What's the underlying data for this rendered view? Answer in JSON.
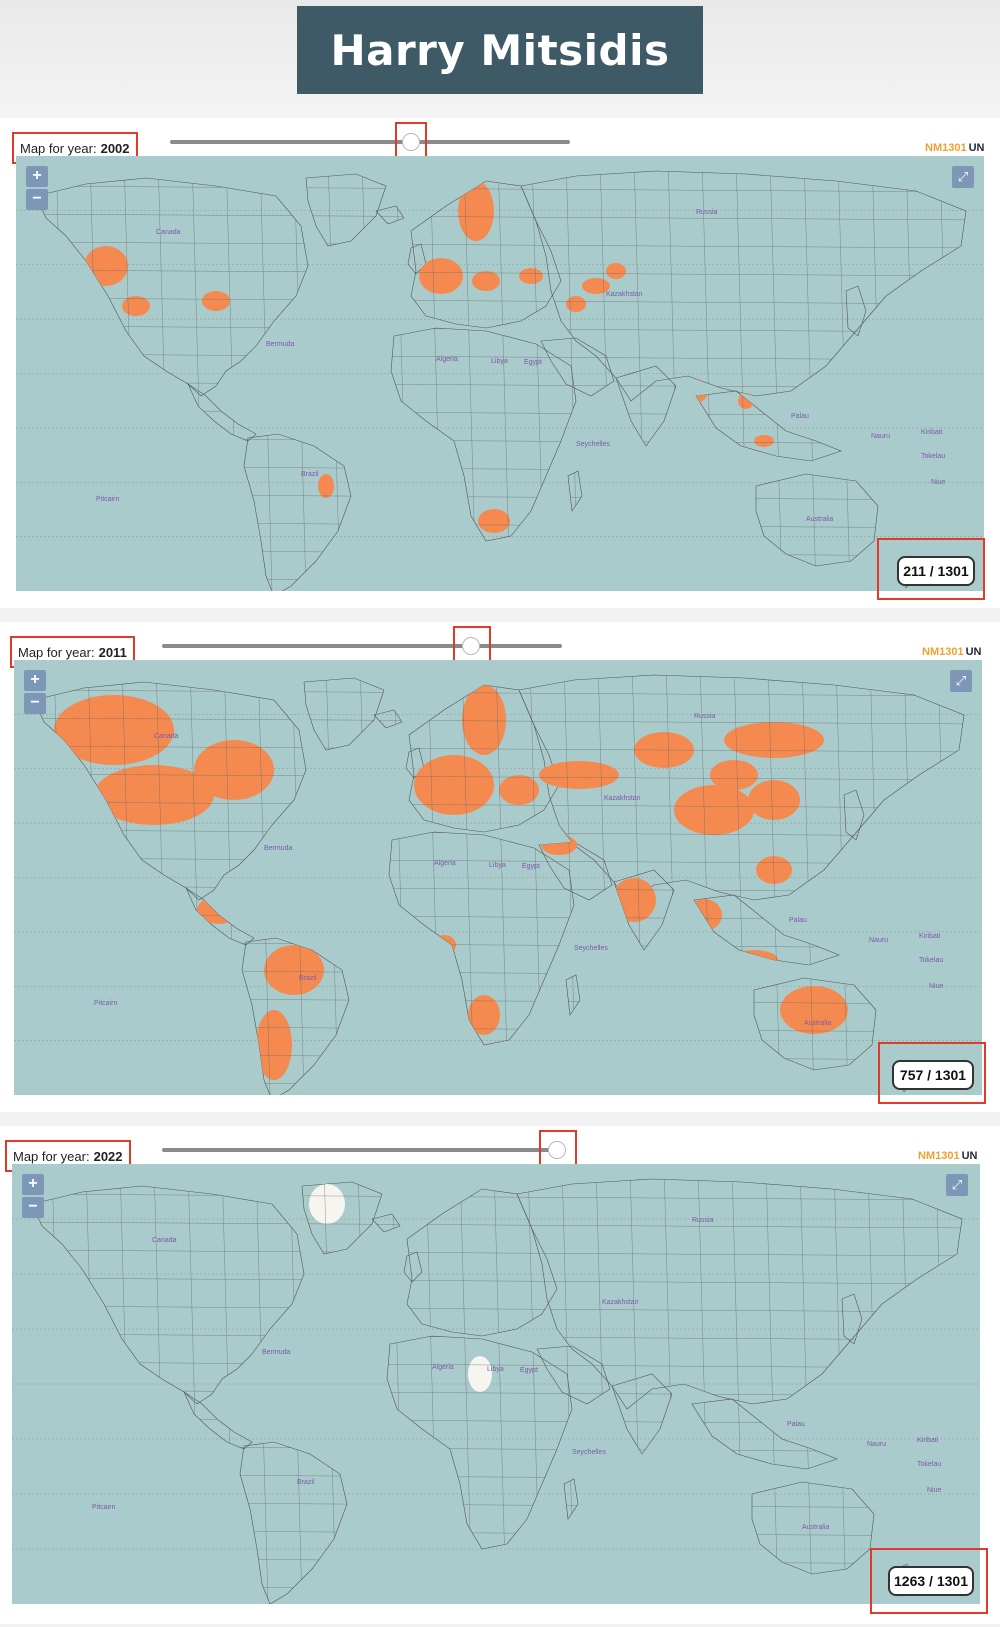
{
  "header": {
    "title": "Harry Mitsidis"
  },
  "panels": [
    {
      "year_label": "Map for year:",
      "year": "2002",
      "slider_value": 0.6,
      "brand_nm": "NM1301",
      "brand_un": "UN",
      "zoom_in": "+",
      "zoom_out": "−",
      "fullscreen": "⤢",
      "counter": "211 / 1301",
      "visited": 211,
      "total": 1301
    },
    {
      "year_label": "Map for year:",
      "year": "2011",
      "slider_value": 0.77,
      "brand_nm": "NM1301",
      "brand_un": "UN",
      "zoom_in": "+",
      "zoom_out": "−",
      "fullscreen": "⤢",
      "counter": "757 / 1301",
      "visited": 757,
      "total": 1301
    },
    {
      "year_label": "Map for year:",
      "year": "2022",
      "slider_value": 1.0,
      "brand_nm": "NM1301",
      "brand_un": "UN",
      "zoom_in": "+",
      "zoom_out": "−",
      "fullscreen": "⤢",
      "counter": "1263 / 1301",
      "visited": 1263,
      "total": 1301
    }
  ],
  "colors": {
    "ocean": "#aacbcb",
    "land": "#f7f5f0",
    "visited": "#f58a50",
    "highlight": "#e03a2a",
    "title_bg": "#3e5a66"
  },
  "map_labels": [
    "Canada",
    "Russia",
    "Australia",
    "Kazakhstan",
    "Algeria",
    "Libya",
    "Egypt",
    "Brazil",
    "Bermuda",
    "Pitcairn",
    "Nauru",
    "Kiribati",
    "Tokelau",
    "Niue",
    "Palau",
    "Seychelles"
  ]
}
